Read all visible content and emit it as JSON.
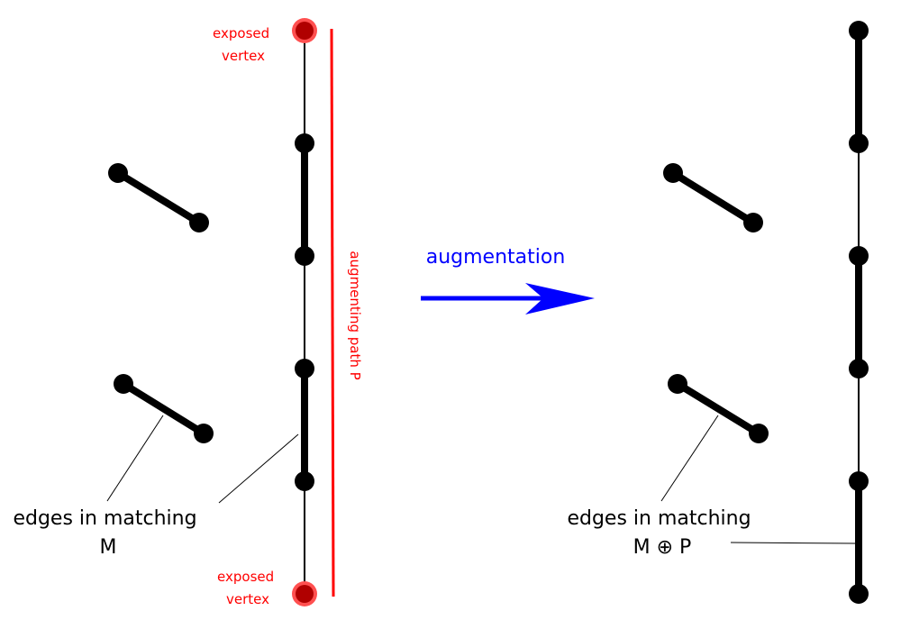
{
  "left": {
    "exposed_top": [
      "exposed",
      "vertex"
    ],
    "exposed_bottom": [
      "exposed",
      "vertex"
    ],
    "path_label": "augmenting path P",
    "matching_label": [
      "edges in matching",
      "M"
    ]
  },
  "arrow_label": "augmentation",
  "right": {
    "matching_label": [
      "edges in matching",
      "M ⊕ P"
    ]
  },
  "colors": {
    "exposed": "#ff0000",
    "arrow": "#0000ff",
    "edge": "#000000"
  }
}
